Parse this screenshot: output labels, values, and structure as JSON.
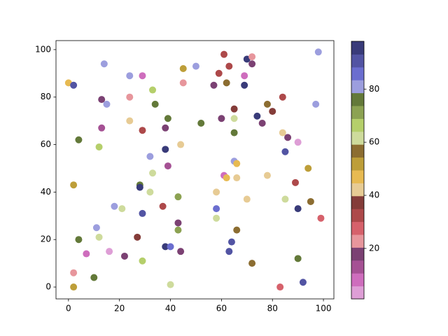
{
  "chart_data": {
    "type": "scatter",
    "x": [
      98,
      61,
      70,
      72,
      72,
      14,
      24,
      29,
      45,
      50,
      0,
      2,
      59,
      63,
      69,
      57,
      62,
      69,
      45,
      33,
      84,
      24,
      13,
      15,
      34,
      78,
      97,
      65,
      80,
      74,
      39,
      60,
      65,
      52,
      76,
      24,
      13,
      29,
      38,
      65,
      84,
      86,
      4,
      12,
      44,
      90,
      38,
      85,
      32,
      65,
      66,
      39,
      94,
      33,
      61,
      62,
      66,
      78,
      2,
      28,
      28,
      89,
      32,
      58,
      43,
      70,
      85,
      95,
      18,
      21,
      37,
      58,
      90,
      29,
      99,
      58,
      43,
      11,
      43,
      66,
      12,
      27,
      4,
      64,
      38,
      40,
      16,
      44,
      63,
      7,
      22,
      29,
      72,
      90,
      2,
      10,
      92,
      40,
      2,
      83
    ],
    "values": [
      99,
      98,
      96,
      97,
      94,
      94,
      89,
      89,
      92,
      93,
      86,
      85,
      90,
      93,
      89,
      85,
      86,
      85,
      86,
      83,
      80,
      80,
      79,
      77,
      77,
      77,
      77,
      75,
      74,
      72,
      71,
      71,
      71,
      69,
      69,
      70,
      67,
      66,
      67,
      65,
      65,
      63,
      62,
      59,
      60,
      61,
      58,
      57,
      55,
      53,
      52,
      51,
      50,
      48,
      47,
      46,
      46,
      47,
      43,
      43,
      42,
      44,
      40,
      40,
      38,
      37,
      37,
      36,
      34,
      33,
      34,
      33,
      33,
      31,
      29,
      29,
      27,
      25,
      24,
      24,
      21,
      21,
      20,
      19,
      17,
      17,
      15,
      15,
      15,
      14,
      13,
      11,
      10,
      12,
      6,
      4,
      2,
      1,
      0,
      0
    ],
    "c": [
      81,
      32,
      95,
      22,
      18,
      81,
      81,
      8,
      52,
      81,
      47,
      90,
      32,
      32,
      8,
      18,
      56,
      95,
      22,
      66,
      32,
      22,
      18,
      81,
      76,
      56,
      81,
      37,
      37,
      95,
      76,
      18,
      61,
      76,
      18,
      42,
      13,
      32,
      18,
      76,
      42,
      18,
      76,
      66,
      42,
      3,
      95,
      90,
      81,
      81,
      47,
      13,
      52,
      61,
      8,
      47,
      42,
      42,
      52,
      76,
      95,
      32,
      61,
      42,
      71,
      42,
      61,
      56,
      81,
      61,
      32,
      85,
      95,
      90,
      27,
      61,
      18,
      81,
      71,
      56,
      61,
      37,
      76,
      90,
      95,
      85,
      3,
      18,
      90,
      8,
      18,
      66,
      56,
      76,
      22,
      76,
      90,
      61,
      52,
      27
    ],
    "colormap": [
      "#de9ed6",
      "#ce6dbd",
      "#a55194",
      "#7b4173",
      "#e7969c",
      "#d6616b",
      "#ad494a",
      "#843c39",
      "#e7cb94",
      "#e7ba52",
      "#bd9e39",
      "#8c6d31",
      "#cedb9c",
      "#b5cf6b",
      "#8ca252",
      "#637939",
      "#9c9ede",
      "#6b6ecf",
      "#5254a3",
      "#393b79"
    ],
    "clim": [
      1,
      98
    ],
    "cticks": [
      20,
      40,
      60,
      80
    ],
    "xlim": [
      -4.9,
      104.1
    ],
    "xticks": [
      0,
      20,
      40,
      60,
      80,
      100
    ],
    "ylim": [
      -5,
      103.8
    ],
    "yticks": [
      0,
      20,
      40,
      60,
      80,
      100
    ]
  }
}
